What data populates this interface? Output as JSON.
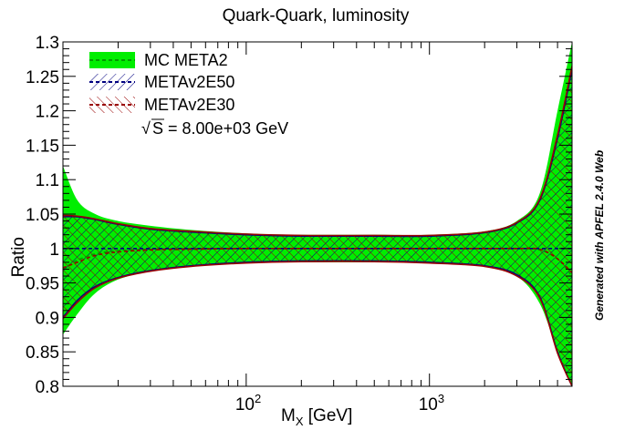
{
  "chart_data": {
    "type": "line",
    "title": "Quark-Quark, luminosity",
    "xlabel_main": "M",
    "xlabel_sub": "X",
    "xlabel_unit": " [GeV]",
    "ylabel": "Ratio",
    "xscale": "log",
    "xlim": [
      10,
      6000
    ],
    "ylim": [
      0.8,
      1.3
    ],
    "y_ticks": [
      "0.8",
      "0.85",
      "0.9",
      "0.95",
      "1",
      "1.05",
      "1.1",
      "1.15",
      "1.2",
      "1.25",
      "1.3"
    ],
    "x_ticks": [
      {
        "value": 100,
        "base": "10",
        "exp": "2"
      },
      {
        "value": 1000,
        "base": "10",
        "exp": "3"
      }
    ],
    "legend_position": "top-left",
    "annotation": "S = 8.00e+03 GeV",
    "annotation_root": "√",
    "side_note": "Generated with APFEL 2.4.0 Web",
    "colors": {
      "mc_fill": "#00ee00",
      "mc_line": "#009900",
      "e50": "#000080",
      "e30": "#990000"
    },
    "series": [
      {
        "name": "MC META2",
        "style": "filled-band",
        "x": [
          10,
          12,
          15,
          20,
          30,
          50,
          100,
          200,
          500,
          1000,
          2000,
          3000,
          4000,
          5000,
          6000
        ],
        "central": [
          0.97,
          0.983,
          0.992,
          0.997,
          0.999,
          1.0,
          1.0,
          1.0,
          1.0,
          1.0,
          1.0,
          1.0,
          0.998,
          0.985,
          0.96
        ],
        "upper": [
          1.12,
          1.07,
          1.05,
          1.04,
          1.033,
          1.027,
          1.022,
          1.02,
          1.02,
          1.02,
          1.025,
          1.04,
          1.08,
          1.2,
          1.3
        ],
        "lower": [
          0.875,
          0.905,
          0.935,
          0.955,
          0.967,
          0.975,
          0.979,
          0.98,
          0.98,
          0.979,
          0.975,
          0.96,
          0.92,
          0.85,
          0.8
        ]
      },
      {
        "name": "METAv2E50",
        "style": "hatched-band",
        "x": [
          10,
          12,
          15,
          20,
          30,
          50,
          100,
          200,
          500,
          1000,
          2000,
          3000,
          4000,
          5000,
          6000
        ],
        "central": [
          1.0,
          1.0,
          1.0,
          1.0,
          1.0,
          1.0,
          1.0,
          1.0,
          1.0,
          1.0,
          1.0,
          1.0,
          1.0,
          1.0,
          1.0
        ],
        "upper": [
          1.046,
          1.046,
          1.042,
          1.035,
          1.028,
          1.024,
          1.02,
          1.018,
          1.018,
          1.018,
          1.023,
          1.037,
          1.07,
          1.16,
          1.26
        ],
        "lower": [
          0.9,
          0.925,
          0.945,
          0.958,
          0.968,
          0.975,
          0.98,
          0.982,
          0.982,
          0.98,
          0.975,
          0.962,
          0.93,
          0.85,
          0.8
        ]
      },
      {
        "name": "METAv2E30",
        "style": "hatched-band",
        "x": [
          10,
          12,
          15,
          20,
          30,
          50,
          100,
          200,
          500,
          1000,
          2000,
          3000,
          4000,
          5000,
          6000
        ],
        "central": [
          0.972,
          0.98,
          0.99,
          0.995,
          0.998,
          0.999,
          1.0,
          1.0,
          1.0,
          1.0,
          1.0,
          1.0,
          0.999,
          0.985,
          0.965
        ],
        "upper": [
          1.048,
          1.047,
          1.043,
          1.036,
          1.029,
          1.025,
          1.021,
          1.019,
          1.019,
          1.019,
          1.024,
          1.038,
          1.072,
          1.165,
          1.265
        ],
        "lower": [
          0.898,
          0.922,
          0.943,
          0.957,
          0.967,
          0.974,
          0.979,
          0.981,
          0.981,
          0.979,
          0.974,
          0.96,
          0.928,
          0.848,
          0.8
        ]
      }
    ]
  }
}
